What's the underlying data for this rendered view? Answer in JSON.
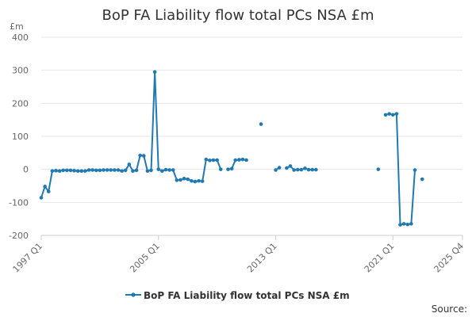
{
  "chart_data": {
    "type": "line",
    "title": "BoP FA Liability flow total PCs NSA £m",
    "unit_label": "£m",
    "ylim": [
      -200,
      400
    ],
    "y_ticks": [
      400,
      300,
      200,
      100,
      0,
      -100,
      -200
    ],
    "x_ticks": [
      "1997 Q1",
      "2005 Q1",
      "2013 Q1",
      "2021 Q1",
      "2025 Q4"
    ],
    "grid": true,
    "legend_position": "bottom",
    "colors": {
      "series": "#1f7ab4",
      "grid": "#e6e6e6",
      "axis": "#cccccc"
    },
    "source_label": "Source:",
    "series": [
      {
        "name": "BoP FA Liability flow total PCs NSA £m",
        "points": [
          [
            "1997 Q1",
            -86
          ],
          [
            "1997 Q2",
            -52
          ],
          [
            "1997 Q3",
            -67
          ],
          [
            "1997 Q4",
            -5
          ],
          [
            "1998 Q1",
            -4
          ],
          [
            "1998 Q2",
            -5
          ],
          [
            "1998 Q3",
            -3
          ],
          [
            "1998 Q4",
            -3
          ],
          [
            "1999 Q1",
            -3
          ],
          [
            "1999 Q2",
            -4
          ],
          [
            "1999 Q3",
            -5
          ],
          [
            "1999 Q4",
            -5
          ],
          [
            "2000 Q1",
            -5
          ],
          [
            "2000 Q2",
            -2
          ],
          [
            "2000 Q3",
            -2
          ],
          [
            "2000 Q4",
            -3
          ],
          [
            "2001 Q1",
            -3
          ],
          [
            "2001 Q2",
            -2
          ],
          [
            "2001 Q3",
            -2
          ],
          [
            "2001 Q4",
            -2
          ],
          [
            "2002 Q1",
            -2
          ],
          [
            "2002 Q2",
            -2
          ],
          [
            "2002 Q3",
            -5
          ],
          [
            "2002 Q4",
            -3
          ],
          [
            "2003 Q1",
            15
          ],
          [
            "2003 Q2",
            -5
          ],
          [
            "2003 Q3",
            -3
          ],
          [
            "2003 Q4",
            42
          ],
          [
            "2004 Q1",
            41
          ],
          [
            "2004 Q2",
            -5
          ],
          [
            "2004 Q3",
            -3
          ],
          [
            "2004 Q4",
            295
          ],
          [
            "2005 Q1",
            0
          ],
          [
            "2005 Q2",
            -5
          ],
          [
            "2005 Q3",
            -1
          ],
          [
            "2005 Q4",
            -2
          ],
          [
            "2006 Q1",
            -2
          ],
          [
            "2006 Q2",
            -33
          ],
          [
            "2006 Q3",
            -32
          ],
          [
            "2006 Q4",
            -28
          ],
          [
            "2007 Q1",
            -30
          ],
          [
            "2007 Q2",
            -35
          ],
          [
            "2007 Q3",
            -37
          ],
          [
            "2007 Q4",
            -35
          ],
          [
            "2008 Q1",
            -36
          ],
          [
            "2008 Q2",
            30
          ],
          [
            "2008 Q3",
            27
          ],
          [
            "2008 Q4",
            28
          ],
          [
            "2009 Q1",
            28
          ],
          [
            "2009 Q2",
            0
          ],
          [
            "2009 Q3",
            null
          ],
          [
            "2009 Q4",
            0
          ],
          [
            "2010 Q1",
            2
          ],
          [
            "2010 Q2",
            28
          ],
          [
            "2010 Q3",
            29
          ],
          [
            "2010 Q4",
            30
          ],
          [
            "2011 Q1",
            28
          ],
          [
            "2012 Q1",
            137
          ],
          [
            "2013 Q1",
            -2
          ],
          [
            "2013 Q2",
            5
          ],
          [
            "2013 Q3",
            null
          ],
          [
            "2013 Q4",
            4
          ],
          [
            "2014 Q1",
            10
          ],
          [
            "2014 Q2",
            -2
          ],
          [
            "2014 Q3",
            -1
          ],
          [
            "2014 Q4",
            -1
          ],
          [
            "2015 Q1",
            3
          ],
          [
            "2015 Q2",
            -1
          ],
          [
            "2015 Q3",
            -1
          ],
          [
            "2015 Q4",
            -1
          ],
          [
            "2020 Q1",
            0
          ],
          [
            "2020 Q3",
            165
          ],
          [
            "2020 Q4",
            168
          ],
          [
            "2021 Q1",
            165
          ],
          [
            "2021 Q2",
            168
          ],
          [
            "2021 Q3",
            -168
          ],
          [
            "2021 Q4",
            -165
          ],
          [
            "2022 Q1",
            -167
          ],
          [
            "2022 Q2",
            -165
          ],
          [
            "2022 Q3",
            -2
          ],
          [
            "2023 Q1",
            -30
          ]
        ]
      }
    ]
  }
}
